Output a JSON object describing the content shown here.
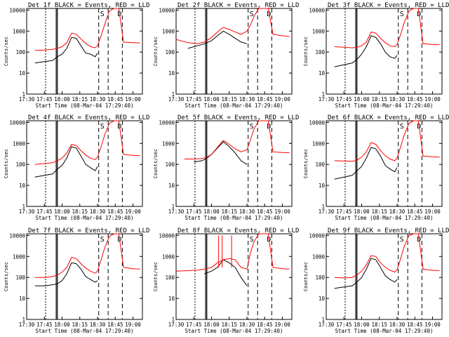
{
  "figure": {
    "y_axis_label": "Counts/sec",
    "x_axis_label": "Start Time (08-Mar-04 17:29:40)",
    "x_tick_labels": [
      "17:30",
      "17:45",
      "18:00",
      "18:15",
      "18:30",
      "18:45",
      "19:00"
    ],
    "y_tick_labels": [
      "1",
      "10",
      "100",
      "1000",
      "10000"
    ],
    "marker_labels": [
      "S",
      "D"
    ],
    "colors": {
      "events": "#000000",
      "lld": "#ff0000",
      "axes": "#000000",
      "background": "#ffffff"
    }
  },
  "chart_data": [
    {
      "type": "line",
      "title": "Det 1f BLACK = Events, RED = LLD",
      "xlabel": "Start Time (08-Mar-04 17:29:40)",
      "ylabel": "Counts/sec",
      "y_scale": "log",
      "xlim": [
        "17:30",
        "19:08"
      ],
      "ylim": [
        1,
        12000
      ],
      "x": [
        "17:37",
        "17:45",
        "17:52",
        "17:56",
        "18:00",
        "18:04",
        "18:08",
        "18:12",
        "18:16",
        "18:20",
        "18:24",
        "18:28",
        "18:30",
        "18:33",
        "18:36",
        "18:40",
        "18:44",
        "18:48",
        "18:52",
        "18:56",
        "19:00",
        "19:06"
      ],
      "series": [
        {
          "name": "BLACK = Events",
          "values": [
            30,
            35,
            40,
            60,
            80,
            150,
            500,
            450,
            200,
            90,
            80,
            60,
            90,
            null,
            null,
            null,
            null,
            null,
            null,
            null,
            null,
            null
          ]
        },
        {
          "name": "RED = LLD",
          "values": [
            120,
            125,
            135,
            150,
            180,
            280,
            800,
            700,
            420,
            260,
            180,
            160,
            200,
            600,
            2000,
            9000,
            12000,
            12000,
            300,
            290,
            280,
            270
          ]
        }
      ],
      "vertical_lines": [
        "17:46",
        "17:55",
        "17:56",
        "18:31",
        "18:39",
        "18:51"
      ]
    },
    {
      "type": "line",
      "title": "Det 2f BLACK = Events, RED = LLD",
      "xlabel": "Start Time (08-Mar-04 17:29:40)",
      "ylabel": "Counts/sec",
      "y_scale": "log",
      "xlim": [
        "17:30",
        "19:08"
      ],
      "ylim": [
        1,
        12000
      ],
      "x": [
        "17:30",
        "17:40",
        "17:48",
        "17:54",
        "18:00",
        "18:05",
        "18:10",
        "18:15",
        "18:20",
        "18:25",
        "18:30",
        "18:33",
        "18:36",
        "18:40",
        "18:44",
        "18:48",
        "18:52",
        "18:56",
        "19:00",
        "19:06"
      ],
      "series": [
        {
          "name": "BLACK = Events",
          "values": [
            null,
            150,
            200,
            250,
            350,
            600,
            1000,
            700,
            450,
            300,
            250,
            null,
            null,
            null,
            null,
            null,
            null,
            null,
            null,
            null
          ]
        },
        {
          "name": "RED = LLD",
          "values": [
            400,
            280,
            250,
            300,
            500,
            900,
            1500,
            1200,
            900,
            700,
            1000,
            2000,
            5000,
            12000,
            12000,
            12000,
            700,
            650,
            600,
            550
          ]
        }
      ],
      "vertical_lines": [
        "17:46",
        "17:55",
        "17:56",
        "18:31",
        "18:39",
        "18:51"
      ]
    },
    {
      "type": "line",
      "title": "Det 3f BLACK = Events, RED = LLD",
      "xlabel": "Start Time (08-Mar-04 17:29:40)",
      "ylabel": "Counts/sec",
      "y_scale": "log",
      "xlim": [
        "17:30",
        "19:08"
      ],
      "ylim": [
        1,
        12000
      ],
      "x": [
        "17:37",
        "17:45",
        "17:52",
        "17:56",
        "18:00",
        "18:04",
        "18:08",
        "18:12",
        "18:16",
        "18:20",
        "18:24",
        "18:28",
        "18:30",
        "18:33",
        "18:36",
        "18:40",
        "18:44",
        "18:48",
        "18:52",
        "18:56",
        "19:00",
        "19:06"
      ],
      "series": [
        {
          "name": "BLACK = Events",
          "values": [
            20,
            25,
            30,
            45,
            80,
            180,
            600,
            500,
            250,
            100,
            60,
            50,
            70,
            null,
            null,
            null,
            null,
            null,
            null,
            null,
            null,
            null
          ]
        },
        {
          "name": "RED = LLD",
          "values": [
            180,
            170,
            160,
            170,
            200,
            300,
            900,
            800,
            450,
            280,
            200,
            180,
            230,
            700,
            2500,
            9000,
            12000,
            12000,
            250,
            240,
            230,
            220
          ]
        }
      ],
      "vertical_lines": [
        "17:46",
        "17:55",
        "17:56",
        "18:31",
        "18:39",
        "18:51"
      ]
    },
    {
      "type": "line",
      "title": "Det 4f BLACK = Events, RED = LLD",
      "xlabel": "Start Time (08-Mar-04 17:29:40)",
      "ylabel": "Counts/sec",
      "y_scale": "log",
      "xlim": [
        "17:30",
        "19:08"
      ],
      "ylim": [
        1,
        12000
      ],
      "x": [
        "17:37",
        "17:45",
        "17:52",
        "17:56",
        "18:00",
        "18:04",
        "18:08",
        "18:12",
        "18:16",
        "18:20",
        "18:24",
        "18:28",
        "18:30",
        "18:33",
        "18:36",
        "18:40",
        "18:44",
        "18:48",
        "18:52",
        "18:56",
        "19:00",
        "19:06"
      ],
      "series": [
        {
          "name": "BLACK = Events",
          "values": [
            25,
            30,
            35,
            60,
            90,
            200,
            700,
            600,
            250,
            100,
            70,
            50,
            80,
            null,
            null,
            null,
            null,
            null,
            null,
            null,
            null,
            null
          ]
        },
        {
          "name": "RED = LLD",
          "values": [
            100,
            110,
            120,
            150,
            200,
            350,
            900,
            800,
            450,
            280,
            200,
            170,
            220,
            700,
            2500,
            9000,
            12000,
            12000,
            300,
            280,
            270,
            260
          ]
        }
      ],
      "vertical_lines": [
        "17:46",
        "17:55",
        "17:56",
        "18:31",
        "18:39",
        "18:51"
      ]
    },
    {
      "type": "line",
      "title": "Det 5f BLACK = Events, RED = LLD",
      "xlabel": "Start Time (08-Mar-04 17:29:40)",
      "ylabel": "Counts/sec",
      "y_scale": "log",
      "xlim": [
        "17:30",
        "19:08"
      ],
      "ylim": [
        1,
        12000
      ],
      "x": [
        "17:37",
        "17:45",
        "17:52",
        "17:56",
        "18:00",
        "18:05",
        "18:10",
        "18:15",
        "18:20",
        "18:25",
        "18:30",
        "18:33",
        "18:36",
        "18:40",
        "18:44",
        "18:48",
        "18:52",
        "18:56",
        "19:00",
        "19:06"
      ],
      "series": [
        {
          "name": "BLACK = Events",
          "values": [
            null,
            130,
            150,
            200,
            300,
            600,
            1200,
            700,
            350,
            150,
            100,
            null,
            null,
            null,
            null,
            null,
            null,
            null,
            null,
            null
          ]
        },
        {
          "name": "RED = LLD",
          "values": [
            180,
            180,
            190,
            220,
            300,
            650,
            1400,
            900,
            550,
            400,
            500,
            1500,
            5000,
            12000,
            12000,
            12000,
            400,
            380,
            370,
            360
          ]
        }
      ],
      "vertical_lines": [
        "17:46",
        "17:55",
        "17:56",
        "18:31",
        "18:39",
        "18:51"
      ]
    },
    {
      "type": "line",
      "title": "Det 6f BLACK = Events, RED = LLD",
      "xlabel": "Start Time (08-Mar-04 17:29:40)",
      "ylabel": "Counts/sec",
      "y_scale": "log",
      "xlim": [
        "17:30",
        "19:08"
      ],
      "ylim": [
        1,
        12000
      ],
      "x": [
        "17:37",
        "17:45",
        "17:52",
        "17:56",
        "18:00",
        "18:04",
        "18:08",
        "18:12",
        "18:16",
        "18:20",
        "18:24",
        "18:28",
        "18:30",
        "18:33",
        "18:36",
        "18:40",
        "18:44",
        "18:48",
        "18:52",
        "18:56",
        "19:00",
        "19:06"
      ],
      "series": [
        {
          "name": "BLACK = Events",
          "values": [
            20,
            25,
            30,
            50,
            80,
            200,
            650,
            550,
            250,
            90,
            60,
            45,
            70,
            null,
            null,
            null,
            null,
            null,
            null,
            null,
            null,
            null
          ]
        },
        {
          "name": "RED = LLD",
          "values": [
            150,
            145,
            140,
            160,
            220,
            400,
            1100,
            900,
            450,
            260,
            180,
            150,
            200,
            700,
            2500,
            9000,
            12000,
            12000,
            250,
            240,
            230,
            220
          ]
        }
      ],
      "vertical_lines": [
        "17:46",
        "17:55",
        "17:56",
        "18:31",
        "18:39",
        "18:51"
      ]
    },
    {
      "type": "line",
      "title": "Det 7f BLACK = Events, RED = LLD",
      "xlabel": "Start Time (08-Mar-04 17:29:40)",
      "ylabel": "Counts/sec",
      "y_scale": "log",
      "xlim": [
        "17:30",
        "19:08"
      ],
      "ylim": [
        1,
        12000
      ],
      "x": [
        "17:37",
        "17:45",
        "17:52",
        "17:56",
        "18:00",
        "18:04",
        "18:08",
        "18:12",
        "18:16",
        "18:20",
        "18:24",
        "18:28",
        "18:30",
        "18:33",
        "18:36",
        "18:40",
        "18:44",
        "18:48",
        "18:52",
        "18:56",
        "19:00",
        "19:06"
      ],
      "series": [
        {
          "name": "BLACK = Events",
          "values": [
            40,
            40,
            45,
            50,
            70,
            150,
            500,
            450,
            250,
            110,
            80,
            60,
            70,
            null,
            null,
            null,
            null,
            null,
            null,
            null,
            null,
            null
          ]
        },
        {
          "name": "RED = LLD",
          "values": [
            100,
            100,
            110,
            130,
            180,
            300,
            900,
            800,
            450,
            280,
            200,
            160,
            200,
            700,
            2500,
            9000,
            12000,
            12000,
            300,
            280,
            260,
            250
          ]
        }
      ],
      "vertical_lines": [
        "17:46",
        "17:55",
        "17:56",
        "18:31",
        "18:39",
        "18:51"
      ]
    },
    {
      "type": "line",
      "title": "Det 8f BLACK = Events, RED = LLD",
      "xlabel": "Start Time (08-Mar-04 17:29:40)",
      "ylabel": "Counts/sec",
      "y_scale": "log",
      "xlim": [
        "17:30",
        "19:08"
      ],
      "ylim": [
        1,
        12000
      ],
      "x": [
        "17:30",
        "17:40",
        "17:48",
        "17:54",
        "18:00",
        "18:05",
        "18:10",
        "18:15",
        "18:20",
        "18:25",
        "18:30",
        "18:33",
        "18:36",
        "18:40",
        "18:44",
        "18:48",
        "18:52",
        "18:56",
        "19:00",
        "19:06"
      ],
      "series": [
        {
          "name": "BLACK = Events",
          "values": [
            null,
            null,
            null,
            150,
            200,
            300,
            700,
            500,
            300,
            100,
            40,
            null,
            null,
            null,
            null,
            null,
            null,
            null,
            null,
            null
          ]
        },
        {
          "name": "RED = LLD",
          "values": [
            200,
            210,
            220,
            250,
            300,
            500,
            700,
            800,
            700,
            300,
            250,
            1500,
            5000,
            12000,
            12000,
            12000,
            300,
            280,
            260,
            250
          ]
        }
      ],
      "spikes": [
        {
          "x": "18:06",
          "value": 10000
        },
        {
          "x": "18:09",
          "value": 10000
        },
        {
          "x": "18:17",
          "value": 10000
        }
      ],
      "vertical_lines": [
        "17:46",
        "17:55",
        "17:56",
        "18:31",
        "18:39",
        "18:51"
      ]
    },
    {
      "type": "line",
      "title": "Det 9f BLACK = Events, RED = LLD",
      "xlabel": "Start Time (08-Mar-04 17:29:40)",
      "ylabel": "Counts/sec",
      "y_scale": "log",
      "xlim": [
        "17:30",
        "19:08"
      ],
      "ylim": [
        1,
        12000
      ],
      "x": [
        "17:37",
        "17:45",
        "17:52",
        "17:56",
        "18:00",
        "18:04",
        "18:08",
        "18:12",
        "18:16",
        "18:20",
        "18:24",
        "18:28",
        "18:30",
        "18:33",
        "18:36",
        "18:40",
        "18:44",
        "18:48",
        "18:52",
        "18:56",
        "19:00",
        "19:06"
      ],
      "series": [
        {
          "name": "BLACK = Events",
          "values": [
            30,
            35,
            40,
            60,
            100,
            250,
            800,
            700,
            300,
            120,
            80,
            60,
            80,
            null,
            null,
            null,
            null,
            null,
            null,
            null,
            null,
            null
          ]
        },
        {
          "name": "RED = LLD",
          "values": [
            100,
            95,
            100,
            130,
            200,
            400,
            1100,
            1000,
            500,
            300,
            220,
            180,
            230,
            800,
            3000,
            10000,
            12000,
            12000,
            250,
            230,
            220,
            210
          ]
        }
      ],
      "vertical_lines": [
        "17:46",
        "17:55",
        "17:56",
        "18:31",
        "18:39",
        "18:51"
      ]
    }
  ]
}
